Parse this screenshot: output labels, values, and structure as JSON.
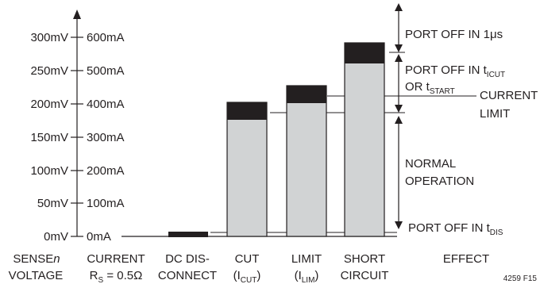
{
  "mv_ticks": [
    "300mV",
    "250mV",
    "200mV",
    "150mV",
    "100mV",
    "50mV",
    "0mV"
  ],
  "ma_ticks": [
    "600mA",
    "500mA",
    "400mA",
    "300mA",
    "200mA",
    "100mA",
    "0mA"
  ],
  "bottom": {
    "sense_1": "SENSE",
    "sense_n": "n",
    "sense_2": "VOLTAGE",
    "current_1": "CURRENT",
    "current_2": "R",
    "current_2_sub": "S",
    "current_2_tail": " = 0.5Ω",
    "dc_1": "DC DIS-",
    "dc_2": "CONNECT",
    "cut_1": "CUT",
    "cut_2a": "(I",
    "cut_2_sub": "CUT",
    "cut_2b": ")",
    "limit_1": "LIMIT",
    "limit_2a": "(I",
    "limit_2_sub": "LIM",
    "limit_2b": ")",
    "short_1": "SHORT",
    "short_2": "CIRCUIT",
    "effect": "EFFECT"
  },
  "effects": {
    "off_1us": "PORT OFF IN 1μs",
    "off_tcut_a": "PORT OFF IN t",
    "off_tcut_sub": "ICUT",
    "or_tstart_a": "OR t",
    "or_tstart_sub": "START",
    "current_limit_1": "CURRENT",
    "current_limit_2": "LIMIT",
    "normal_1": "NORMAL",
    "normal_2": "OPERATION",
    "off_tdis_a": "PORT OFF IN t",
    "off_tdis_sub": "DIS"
  },
  "figure_id": "4259 F15"
}
